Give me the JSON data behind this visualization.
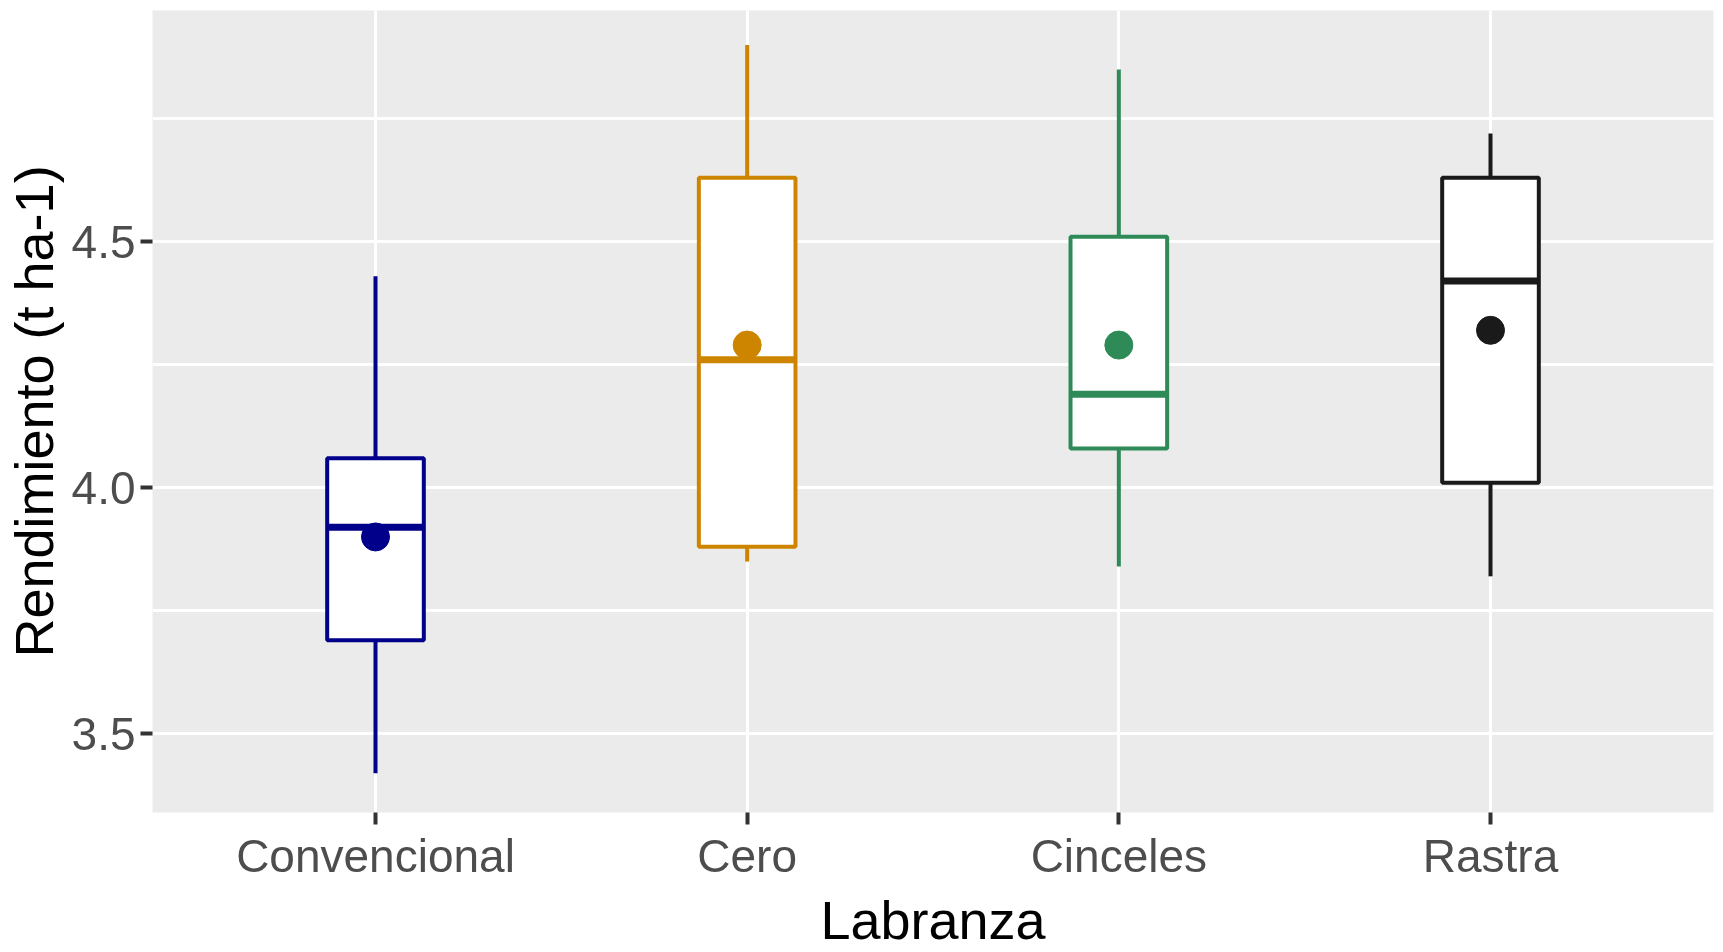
{
  "chart_data": {
    "type": "box",
    "xlabel": "Labranza",
    "ylabel": "Rendimiento (t ha-1)",
    "categories": [
      "Convencional",
      "Cero",
      "Cinceles",
      "Rastra"
    ],
    "colors": [
      "#00008b",
      "#cd8500",
      "#2e8b57",
      "#1a1a1a"
    ],
    "boxes": [
      {
        "low": 3.42,
        "q1": 3.69,
        "median": 3.92,
        "q3": 4.06,
        "high": 4.43,
        "mean": 3.9
      },
      {
        "low": 3.85,
        "q1": 3.88,
        "median": 4.26,
        "q3": 4.63,
        "high": 4.9,
        "mean": 4.29
      },
      {
        "low": 3.84,
        "q1": 4.08,
        "median": 4.19,
        "q3": 4.51,
        "high": 4.85,
        "mean": 4.29
      },
      {
        "low": 3.82,
        "q1": 4.01,
        "median": 4.42,
        "q3": 4.63,
        "high": 4.72,
        "mean": 4.32
      }
    ],
    "ylim": [
      3.34,
      4.97
    ],
    "yticks": [
      {
        "value": 3.5,
        "label": "3.5"
      },
      {
        "value": 3.75,
        "label": null
      },
      {
        "value": 4.0,
        "label": "4.0"
      },
      {
        "value": 4.25,
        "label": null
      },
      {
        "value": 4.5,
        "label": "4.5"
      },
      {
        "value": 4.75,
        "label": null
      }
    ],
    "grid": true,
    "marker": "circle"
  }
}
